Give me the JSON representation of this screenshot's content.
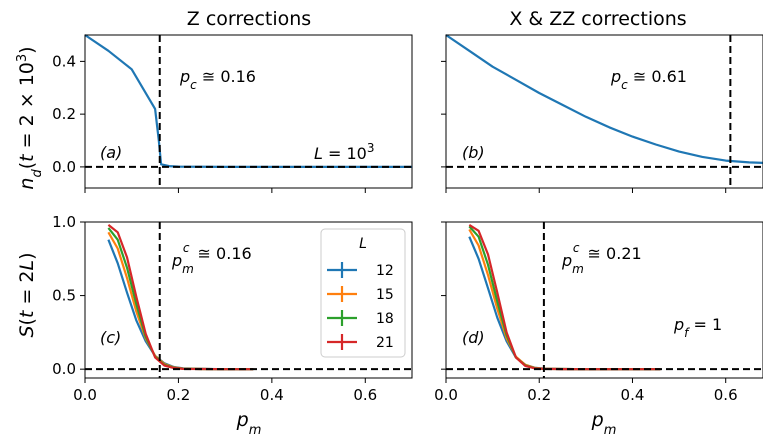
{
  "column_titles": [
    "Z corrections",
    "X & ZZ corrections"
  ],
  "axis_labels": {
    "top_ylabel": "n_d(t = 2 × 10^3)",
    "bottom_ylabel": "S(t = 2L)",
    "xlabel": "p_m"
  },
  "colors": {
    "blue": "#1f77b4",
    "orange": "#ff7f0e",
    "green": "#2ca02c",
    "red": "#d62728"
  },
  "chart_data": [
    {
      "type": "line",
      "panel_label": "(a)",
      "annotations": [
        "p_c ≅ 0.16",
        "L = 10^3"
      ],
      "xlim": [
        0,
        0.7
      ],
      "ylim": [
        -0.08,
        0.5
      ],
      "x_ticks": [
        "0.0",
        "0.2",
        "0.4",
        "0.6"
      ],
      "y_ticks": [
        "0.0",
        "0.2",
        "0.4"
      ],
      "x_tick_values": [
        0,
        0.2,
        0.4,
        0.6
      ],
      "y_tick_values": [
        0,
        0.2,
        0.4
      ],
      "vline": 0.16,
      "hline": 0,
      "series": [
        {
          "x": [
            0,
            0.05,
            0.1,
            0.15,
            0.158,
            0.163,
            0.18,
            0.2,
            0.3,
            0.4,
            0.5,
            0.6,
            0.7
          ],
          "y": [
            0.5,
            0.44,
            0.37,
            0.22,
            0.1,
            0.01,
            0.003,
            0.001,
            0,
            0,
            0,
            0,
            0
          ]
        }
      ]
    },
    {
      "type": "line",
      "panel_label": "(b)",
      "annotations": [
        "p_c ≅ 0.61"
      ],
      "xlim": [
        0,
        0.68
      ],
      "ylim": [
        -0.08,
        0.5
      ],
      "x_ticks": [
        "0.0",
        "0.2",
        "0.4",
        "0.6"
      ],
      "y_ticks": [],
      "x_tick_values": [
        0,
        0.2,
        0.4,
        0.6
      ],
      "y_tick_values": [
        0,
        0.2,
        0.4
      ],
      "vline": 0.61,
      "hline": 0,
      "series": [
        {
          "x": [
            0,
            0.05,
            0.1,
            0.15,
            0.2,
            0.25,
            0.3,
            0.35,
            0.4,
            0.45,
            0.5,
            0.55,
            0.6,
            0.65,
            0.68
          ],
          "y": [
            0.5,
            0.44,
            0.38,
            0.33,
            0.28,
            0.235,
            0.19,
            0.15,
            0.115,
            0.085,
            0.058,
            0.038,
            0.024,
            0.017,
            0.015
          ]
        }
      ]
    },
    {
      "type": "line",
      "panel_label": "(c)",
      "annotations": [
        "p_m^c ≅ 0.16"
      ],
      "xlim": [
        0,
        0.7
      ],
      "ylim": [
        -0.06,
        1.0
      ],
      "x_ticks": [
        "0.0",
        "0.2",
        "0.4",
        "0.6"
      ],
      "y_ticks": [
        "0.0",
        "0.5",
        "1.0"
      ],
      "x_tick_values": [
        0,
        0.2,
        0.4,
        0.6
      ],
      "y_tick_values": [
        0,
        0.5,
        1.0
      ],
      "vline": 0.16,
      "hline": 0,
      "legend": {
        "title": "L",
        "position": "upper-right",
        "entries": [
          "12",
          "15",
          "18",
          "21"
        ]
      },
      "series": [
        {
          "name": "12",
          "color": "#1f77b4",
          "x": [
            0.05,
            0.07,
            0.09,
            0.11,
            0.13,
            0.15,
            0.17,
            0.19,
            0.21,
            0.25,
            0.3,
            0.36
          ],
          "y": [
            0.88,
            0.72,
            0.52,
            0.33,
            0.19,
            0.09,
            0.04,
            0.015,
            0.006,
            0.002,
            0,
            0
          ]
        },
        {
          "name": "15",
          "color": "#ff7f0e",
          "x": [
            0.05,
            0.07,
            0.09,
            0.11,
            0.13,
            0.15,
            0.17,
            0.19,
            0.21,
            0.25,
            0.3,
            0.36
          ],
          "y": [
            0.93,
            0.82,
            0.62,
            0.39,
            0.21,
            0.09,
            0.035,
            0.012,
            0.004,
            0.001,
            0,
            0
          ]
        },
        {
          "name": "18",
          "color": "#2ca02c",
          "x": [
            0.05,
            0.07,
            0.09,
            0.11,
            0.13,
            0.15,
            0.17,
            0.19,
            0.21,
            0.25,
            0.3,
            0.36
          ],
          "y": [
            0.96,
            0.88,
            0.69,
            0.44,
            0.22,
            0.085,
            0.03,
            0.01,
            0.003,
            0.001,
            0,
            0
          ]
        },
        {
          "name": "21",
          "color": "#d62728",
          "x": [
            0.05,
            0.07,
            0.09,
            0.11,
            0.13,
            0.15,
            0.17,
            0.19,
            0.21,
            0.25,
            0.3,
            0.36
          ],
          "y": [
            0.98,
            0.93,
            0.76,
            0.49,
            0.24,
            0.08,
            0.025,
            0.008,
            0.002,
            0.001,
            0,
            0
          ]
        }
      ]
    },
    {
      "type": "line",
      "panel_label": "(d)",
      "annotations": [
        "p_m^c ≅ 0.21",
        "p_f = 1"
      ],
      "xlim": [
        0,
        0.68
      ],
      "ylim": [
        -0.06,
        1.0
      ],
      "x_ticks": [
        "0.0",
        "0.2",
        "0.4",
        "0.6"
      ],
      "y_ticks": [],
      "x_tick_values": [
        0,
        0.2,
        0.4,
        0.6
      ],
      "y_tick_values": [
        0,
        0.5,
        1.0
      ],
      "vline": 0.21,
      "hline": 0,
      "series": [
        {
          "name": "12",
          "color": "#1f77b4",
          "x": [
            0.05,
            0.07,
            0.09,
            0.11,
            0.13,
            0.15,
            0.17,
            0.19,
            0.21,
            0.25,
            0.3,
            0.38,
            0.46
          ],
          "y": [
            0.9,
            0.75,
            0.55,
            0.35,
            0.19,
            0.08,
            0.03,
            0.01,
            0.004,
            0.001,
            0,
            0,
            0
          ]
        },
        {
          "name": "15",
          "color": "#ff7f0e",
          "x": [
            0.05,
            0.07,
            0.09,
            0.11,
            0.13,
            0.15,
            0.17,
            0.19,
            0.21,
            0.25,
            0.3,
            0.38,
            0.46
          ],
          "y": [
            0.95,
            0.84,
            0.64,
            0.41,
            0.21,
            0.085,
            0.03,
            0.009,
            0.003,
            0.001,
            0,
            0,
            0
          ]
        },
        {
          "name": "18",
          "color": "#2ca02c",
          "x": [
            0.05,
            0.07,
            0.09,
            0.11,
            0.13,
            0.15,
            0.17,
            0.19,
            0.21,
            0.25,
            0.3,
            0.38,
            0.46
          ],
          "y": [
            0.97,
            0.9,
            0.71,
            0.46,
            0.23,
            0.08,
            0.025,
            0.007,
            0.002,
            0.001,
            0,
            0,
            0
          ]
        },
        {
          "name": "21",
          "color": "#d62728",
          "x": [
            0.05,
            0.07,
            0.09,
            0.11,
            0.13,
            0.15,
            0.17,
            0.19,
            0.21,
            0.25,
            0.3,
            0.38,
            0.46
          ],
          "y": [
            0.98,
            0.94,
            0.78,
            0.52,
            0.25,
            0.08,
            0.022,
            0.006,
            0.002,
            0.0005,
            0,
            0,
            0
          ]
        }
      ]
    }
  ]
}
